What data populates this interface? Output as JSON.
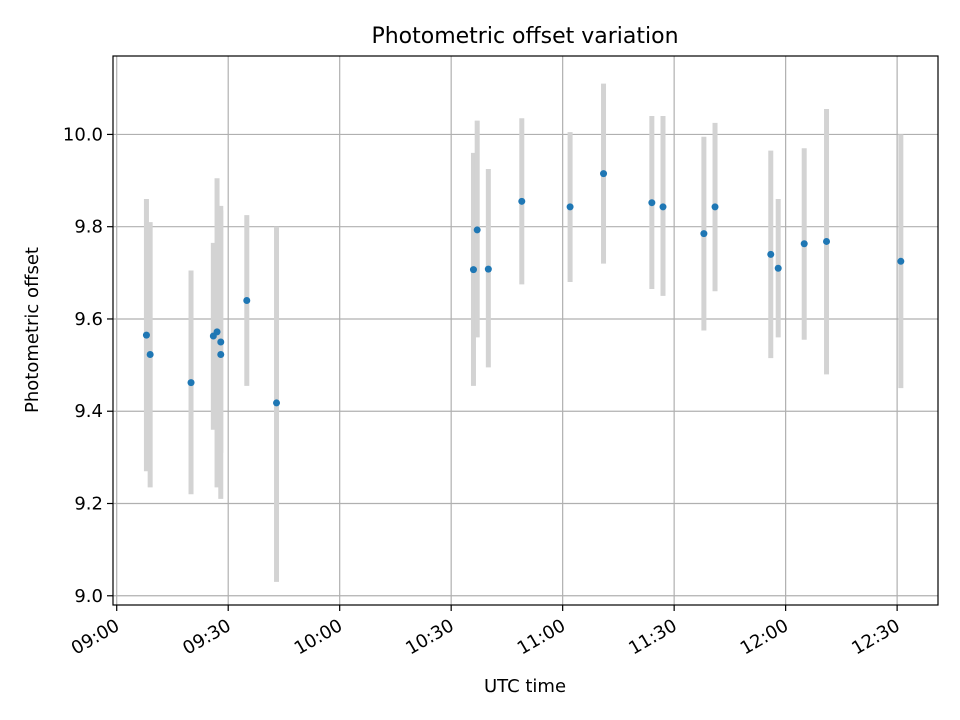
{
  "chart_data": {
    "type": "scatter",
    "title": "Photometric offset variation",
    "xlabel": "UTC time",
    "ylabel": "Photometric offset",
    "x_ticks": [
      "09:00",
      "09:30",
      "10:00",
      "10:30",
      "11:00",
      "11:30",
      "12:00",
      "12:30"
    ],
    "y_ticks": [
      "9.0",
      "9.2",
      "9.4",
      "9.6",
      "9.8",
      "10.0"
    ],
    "xlim": [
      "08:59",
      "12:41"
    ],
    "ylim": [
      8.98,
      10.17
    ],
    "grid": true,
    "colors": {
      "point": "#1f77b4",
      "errorbar": "#d3d3d3",
      "grid": "#b0b0b0"
    },
    "points": [
      {
        "time": "09:08",
        "y": 9.565,
        "err_low": 9.27,
        "err_high": 9.86
      },
      {
        "time": "09:09",
        "y": 9.523,
        "err_low": 9.235,
        "err_high": 9.81
      },
      {
        "time": "09:20",
        "y": 9.462,
        "err_low": 9.22,
        "err_high": 9.705
      },
      {
        "time": "09:26",
        "y": 9.563,
        "err_low": 9.36,
        "err_high": 9.765
      },
      {
        "time": "09:27",
        "y": 9.572,
        "err_low": 9.235,
        "err_high": 9.905
      },
      {
        "time": "09:28",
        "y": 9.55,
        "err_low": 9.31,
        "err_high": 9.845
      },
      {
        "time": "09:28",
        "y": 9.523,
        "err_low": 9.21,
        "err_high": 9.835
      },
      {
        "time": "09:35",
        "y": 9.64,
        "err_low": 9.455,
        "err_high": 9.825
      },
      {
        "time": "09:43",
        "y": 9.418,
        "err_low": 9.03,
        "err_high": 9.8
      },
      {
        "time": "10:36",
        "y": 9.707,
        "err_low": 9.455,
        "err_high": 9.96
      },
      {
        "time": "10:37",
        "y": 9.793,
        "err_low": 9.56,
        "err_high": 10.03
      },
      {
        "time": "10:40",
        "y": 9.708,
        "err_low": 9.495,
        "err_high": 9.925
      },
      {
        "time": "10:49",
        "y": 9.855,
        "err_low": 9.675,
        "err_high": 10.035
      },
      {
        "time": "11:02",
        "y": 9.843,
        "err_low": 9.68,
        "err_high": 10.005
      },
      {
        "time": "11:11",
        "y": 9.915,
        "err_low": 9.72,
        "err_high": 10.11
      },
      {
        "time": "11:24",
        "y": 9.852,
        "err_low": 9.665,
        "err_high": 10.04
      },
      {
        "time": "11:27",
        "y": 9.843,
        "err_low": 9.65,
        "err_high": 10.04
      },
      {
        "time": "11:38",
        "y": 9.785,
        "err_low": 9.575,
        "err_high": 9.995
      },
      {
        "time": "11:41",
        "y": 9.843,
        "err_low": 9.66,
        "err_high": 10.025
      },
      {
        "time": "11:56",
        "y": 9.74,
        "err_low": 9.515,
        "err_high": 9.965
      },
      {
        "time": "11:58",
        "y": 9.71,
        "err_low": 9.56,
        "err_high": 9.86
      },
      {
        "time": "12:05",
        "y": 9.763,
        "err_low": 9.555,
        "err_high": 9.97
      },
      {
        "time": "12:11",
        "y": 9.768,
        "err_low": 9.48,
        "err_high": 10.055
      },
      {
        "time": "12:31",
        "y": 9.725,
        "err_low": 9.45,
        "err_high": 10.0
      }
    ]
  }
}
